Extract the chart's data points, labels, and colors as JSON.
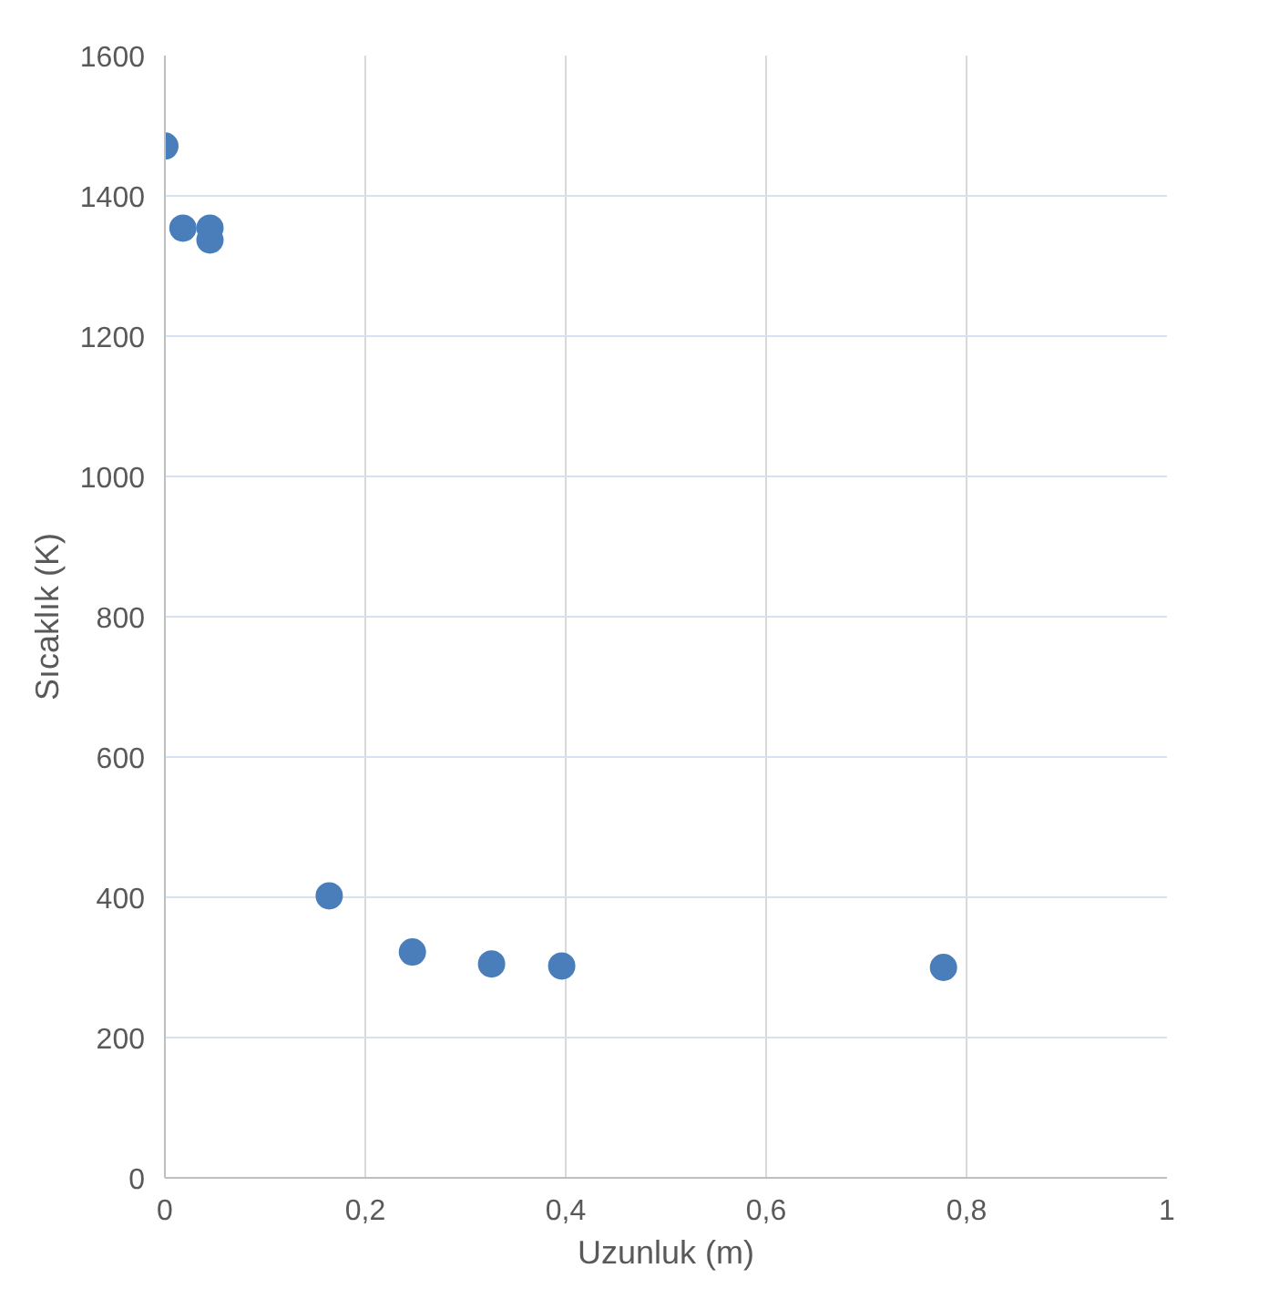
{
  "chart_data": {
    "type": "scatter",
    "xlabel": "Uzunluk (m)",
    "ylabel": "Sıcaklık (K)",
    "x": [
      0,
      0.018,
      0.045,
      0.045,
      0.164,
      0.247,
      0.326,
      0.396,
      0.777
    ],
    "series": [
      {
        "color": "#4a7ebb",
        "values": [
          1471,
          1354,
          1354,
          1337,
          402,
          322,
          305,
          302,
          300
        ]
      }
    ],
    "xlim": [
      0,
      1
    ],
    "ylim": [
      0,
      1600
    ],
    "xticks": [
      {
        "value": 0,
        "label": "0"
      },
      {
        "value": 0.2,
        "label": "0,2"
      },
      {
        "value": 0.4,
        "label": "0,4"
      },
      {
        "value": 0.6,
        "label": "0,6"
      },
      {
        "value": 0.8,
        "label": "0,8"
      },
      {
        "value": 1,
        "label": "1"
      }
    ],
    "yticks": [
      0,
      200,
      400,
      600,
      800,
      1000,
      1200,
      1400,
      1600
    ],
    "grid": true,
    "marker": "circle"
  }
}
